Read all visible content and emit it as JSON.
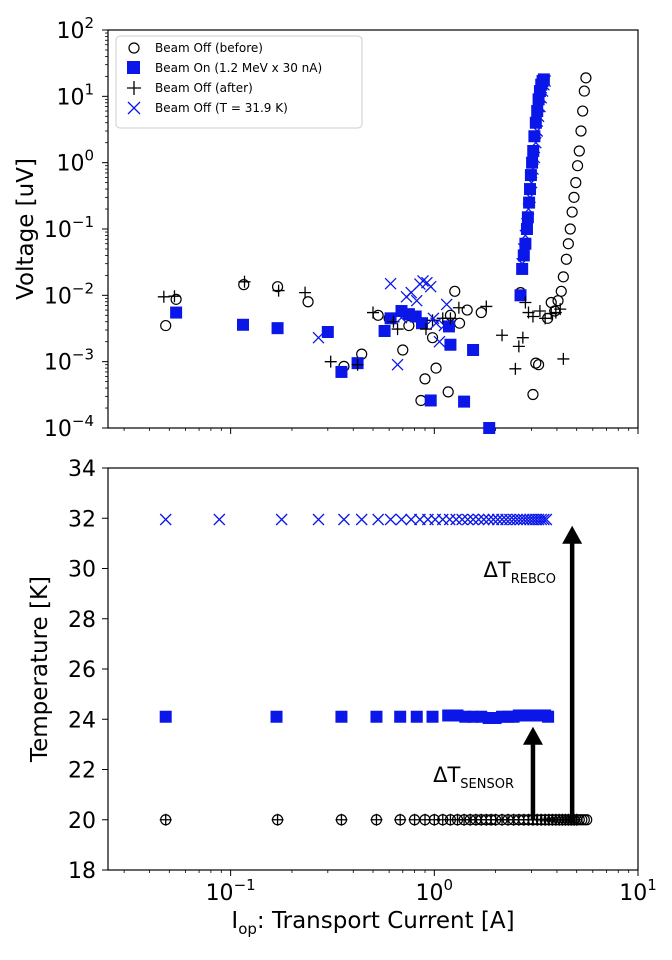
{
  "chart_data": [
    {
      "type": "scatter",
      "title": "",
      "xlabel": "",
      "ylabel": "Voltage [uV]",
      "xscale": "log",
      "yscale": "log",
      "xlim": [
        0.025,
        10
      ],
      "ylim": [
        0.0001,
        100
      ],
      "yticks": [
        {
          "value": 0.0001,
          "base": "10",
          "exp": "−4"
        },
        {
          "value": 0.001,
          "base": "10",
          "exp": "−3"
        },
        {
          "value": 0.01,
          "base": "10",
          "exp": "−2"
        },
        {
          "value": 0.1,
          "base": "10",
          "exp": "−1"
        },
        {
          "value": 1,
          "base": "10",
          "exp": "0"
        },
        {
          "value": 10,
          "base": "10",
          "exp": "1"
        },
        {
          "value": 100,
          "base": "10",
          "exp": "2"
        }
      ],
      "legend_position": "top-left",
      "series": [
        {
          "name": "Beam Off (before)",
          "marker": "circle-open",
          "color": "#000000",
          "x": [
            0.048,
            0.054,
            0.116,
            0.17,
            0.24,
            0.36,
            0.44,
            0.53,
            0.6,
            0.7,
            0.75,
            0.86,
            0.9,
            0.98,
            1.02,
            1.17,
            1.2,
            1.26,
            1.33,
            1.45,
            1.7,
            2.65,
            3.05,
            3.15,
            3.25,
            3.6,
            3.75,
            3.9,
            4.05,
            4.2,
            4.3,
            4.45,
            4.55,
            4.65,
            4.75,
            4.85,
            4.95,
            5.05,
            5.15,
            5.25,
            5.35,
            5.45,
            5.55
          ],
          "y": [
            0.0035,
            0.0087,
            0.0145,
            0.0135,
            0.008,
            0.00085,
            0.0013,
            0.005,
            0.0045,
            0.0015,
            0.0035,
            0.00026,
            0.00055,
            0.0023,
            0.0008,
            0.00035,
            0.005,
            0.0115,
            0.0038,
            0.006,
            0.0055,
            0.011,
            0.00032,
            0.00095,
            0.0009,
            0.0045,
            0.0078,
            0.0058,
            0.0083,
            0.0115,
            0.019,
            0.035,
            0.06,
            0.1,
            0.18,
            0.3,
            0.5,
            0.9,
            1.5,
            3,
            6,
            12,
            19
          ]
        },
        {
          "name": "Beam On (1.2 MeV x 30 nA)",
          "marker": "square-filled",
          "color": "#0a17e8",
          "x": [
            0.054,
            0.115,
            0.17,
            0.3,
            0.35,
            0.42,
            0.57,
            0.61,
            0.69,
            0.75,
            0.81,
            0.87,
            0.96,
            1.18,
            1.2,
            1.4,
            1.55,
            1.86,
            2.65,
            2.7,
            2.75,
            2.8,
            2.85,
            2.88,
            2.92,
            2.95,
            2.98,
            3.02,
            3.06,
            3.1,
            3.15,
            3.2,
            3.25,
            3.3,
            3.35,
            3.4,
            3.45
          ],
          "y": [
            0.0055,
            0.0036,
            0.0032,
            0.0028,
            0.0007,
            0.00095,
            0.0029,
            0.0045,
            0.0058,
            0.0052,
            0.0048,
            0.0038,
            0.00026,
            0.0034,
            0.0018,
            0.00025,
            0.0015,
            0.0001,
            0.01,
            0.025,
            0.04,
            0.06,
            0.1,
            0.15,
            0.25,
            0.4,
            0.65,
            1.0,
            1.5,
            2.5,
            4.0,
            6.0,
            9.0,
            12.0,
            15.0,
            17.0,
            18.0
          ]
        },
        {
          "name": "Beam Off (after)",
          "marker": "plus",
          "color": "#000000",
          "x": [
            0.047,
            0.053,
            0.117,
            0.172,
            0.232,
            0.31,
            0.42,
            0.5,
            0.63,
            0.66,
            0.91,
            0.98,
            1.1,
            1.2,
            1.32,
            1.8,
            2.15,
            2.5,
            2.6,
            2.72,
            2.8,
            2.9,
            3.05,
            3.3,
            3.5,
            3.75,
            3.95,
            4.15,
            4.3
          ],
          "y": [
            0.0095,
            0.0097,
            0.016,
            0.0118,
            0.011,
            0.001,
            0.0009,
            0.0055,
            0.004,
            0.0031,
            0.0031,
            0.0042,
            0.0045,
            0.0045,
            0.0065,
            0.0068,
            0.0025,
            0.00078,
            0.0017,
            0.0023,
            0.0078,
            0.0055,
            0.0048,
            0.0058,
            0.0045,
            0.0053,
            0.0055,
            0.0062,
            0.0011
          ]
        },
        {
          "name": "Beam Off (T = 31.9 K)",
          "marker": "x",
          "color": "#0a17e8",
          "x": [
            0.27,
            0.61,
            0.66,
            0.69,
            0.73,
            0.77,
            0.82,
            0.85,
            0.88,
            0.92,
            0.96,
            0.99,
            1.02,
            1.06,
            1.12,
            1.15,
            2.7,
            2.75,
            2.8,
            2.85,
            2.9,
            2.95,
            3.0,
            3.05,
            3.1,
            3.15,
            3.2,
            3.25,
            3.3,
            3.35,
            3.4,
            3.45,
            3.5
          ],
          "y": [
            0.0023,
            0.015,
            0.0009,
            0.0046,
            0.0095,
            0.011,
            0.0083,
            0.0148,
            0.0165,
            0.0155,
            0.0135,
            0.0045,
            0.0038,
            0.002,
            0.0035,
            0.0073,
            0.03,
            0.05,
            0.08,
            0.12,
            0.2,
            0.3,
            0.5,
            0.8,
            1.2,
            2.0,
            3.0,
            5.0,
            7.0,
            9.5,
            12.0,
            15.0,
            17.0
          ]
        }
      ]
    },
    {
      "type": "scatter",
      "title": "",
      "xlabel_main": "I",
      "xlabel_sub": "op",
      "xlabel_rest": ": Transport Current [A]",
      "ylabel": "Temperature [K]",
      "xscale": "log",
      "xlim": [
        0.025,
        10
      ],
      "ylim": [
        18,
        34
      ],
      "yticks": [
        18,
        20,
        22,
        24,
        26,
        28,
        30,
        32,
        34
      ],
      "xticks": [
        {
          "value": 0.1,
          "base": "10",
          "exp": "−1"
        },
        {
          "value": 1,
          "base": "10",
          "exp": "0"
        },
        {
          "value": 10,
          "base": "10",
          "exp": "1"
        }
      ],
      "series": [
        {
          "name": "Beam Off (before)",
          "marker": "circle-open",
          "color": "#000000",
          "x": [
            0.048,
            0.17,
            0.35,
            0.52,
            0.68,
            0.8,
            0.9,
            1.0,
            1.1,
            1.2,
            1.3,
            1.4,
            1.5,
            1.6,
            1.7,
            1.8,
            1.9,
            2.0,
            2.15,
            2.3,
            2.45,
            2.6,
            2.75,
            2.9,
            3.05,
            3.2,
            3.35,
            3.5,
            3.65,
            3.8,
            3.95,
            4.1,
            4.25,
            4.4,
            4.55,
            4.7,
            4.85,
            5.0,
            5.15,
            5.3,
            5.45,
            5.6
          ],
          "y": [
            20,
            20,
            20,
            20,
            20,
            20,
            20,
            20,
            20,
            20,
            20,
            20,
            20,
            20,
            20,
            20,
            20,
            20,
            20,
            20,
            20,
            20,
            20,
            20,
            20,
            20,
            20,
            20,
            20,
            20,
            20,
            20,
            20,
            20,
            20,
            20,
            20,
            20,
            20,
            20,
            20,
            20
          ]
        },
        {
          "name": "Beam On (1.2 MeV x 30 nA)",
          "marker": "square-filled",
          "color": "#0a17e8",
          "x": [
            0.048,
            0.168,
            0.35,
            0.52,
            0.68,
            0.82,
            0.98,
            1.17,
            1.3,
            1.42,
            1.55,
            1.7,
            1.85,
            2.0,
            2.15,
            2.3,
            2.45,
            2.6,
            2.75,
            2.9,
            3.05,
            3.2,
            3.35,
            3.5,
            3.62
          ],
          "y": [
            24.1,
            24.1,
            24.1,
            24.1,
            24.1,
            24.1,
            24.1,
            24.15,
            24.15,
            24.1,
            24.1,
            24.1,
            24.05,
            24.05,
            24.1,
            24.1,
            24.1,
            24.15,
            24.15,
            24.15,
            24.15,
            24.15,
            24.15,
            24.15,
            24.1
          ]
        },
        {
          "name": "Beam Off (after)",
          "marker": "plus",
          "color": "#000000",
          "x": [
            0.048,
            0.17,
            0.35,
            0.52,
            0.68,
            0.8,
            0.9,
            1.0,
            1.1,
            1.2,
            1.3,
            1.4,
            1.5,
            1.6,
            1.7,
            1.8,
            1.9,
            2.0,
            2.15,
            2.3,
            2.45,
            2.6,
            2.75,
            2.9,
            3.05,
            3.2,
            3.35,
            3.5,
            3.65,
            3.8,
            3.95,
            4.1,
            4.25,
            4.4,
            4.55,
            4.7,
            4.85,
            5.0
          ],
          "y": [
            20,
            20,
            20,
            20,
            20,
            20,
            20,
            20,
            20,
            20,
            20,
            20,
            20,
            20,
            20,
            20,
            20,
            20,
            20,
            20,
            20,
            20,
            20,
            20,
            20,
            20,
            20,
            20,
            20,
            20,
            20,
            20,
            20,
            20,
            20,
            20,
            20,
            20
          ]
        },
        {
          "name": "Beam Off (T = 31.9 K)",
          "marker": "x",
          "color": "#0a17e8",
          "x": [
            0.048,
            0.088,
            0.178,
            0.27,
            0.36,
            0.44,
            0.53,
            0.61,
            0.69,
            0.77,
            0.85,
            0.93,
            1.01,
            1.1,
            1.19,
            1.28,
            1.37,
            1.46,
            1.55,
            1.65,
            1.75,
            1.85,
            1.95,
            2.05,
            2.15,
            2.25,
            2.35,
            2.45,
            2.55,
            2.65,
            2.75,
            2.85,
            2.95,
            3.05,
            3.15,
            3.25,
            3.35,
            3.45,
            3.55
          ],
          "y": [
            31.95,
            31.95,
            31.95,
            31.95,
            31.95,
            31.95,
            31.95,
            31.95,
            31.95,
            31.95,
            31.95,
            31.95,
            31.95,
            31.95,
            31.95,
            31.95,
            31.95,
            31.95,
            31.95,
            31.95,
            31.95,
            31.95,
            31.95,
            31.95,
            31.95,
            31.95,
            31.95,
            31.95,
            31.95,
            31.95,
            31.95,
            31.95,
            31.95,
            31.95,
            31.95,
            31.95,
            31.95,
            31.95,
            31.95
          ]
        }
      ],
      "annotations": [
        {
          "label_main": "ΔT",
          "label_sub": "REBCO",
          "arrow_x": 4.75,
          "arrow_from_y": 20,
          "arrow_to_y": 31.7
        },
        {
          "label_main": "ΔT",
          "label_sub": "SENSOR",
          "arrow_x": 3.05,
          "arrow_from_y": 20,
          "arrow_to_y": 23.7
        }
      ]
    }
  ]
}
